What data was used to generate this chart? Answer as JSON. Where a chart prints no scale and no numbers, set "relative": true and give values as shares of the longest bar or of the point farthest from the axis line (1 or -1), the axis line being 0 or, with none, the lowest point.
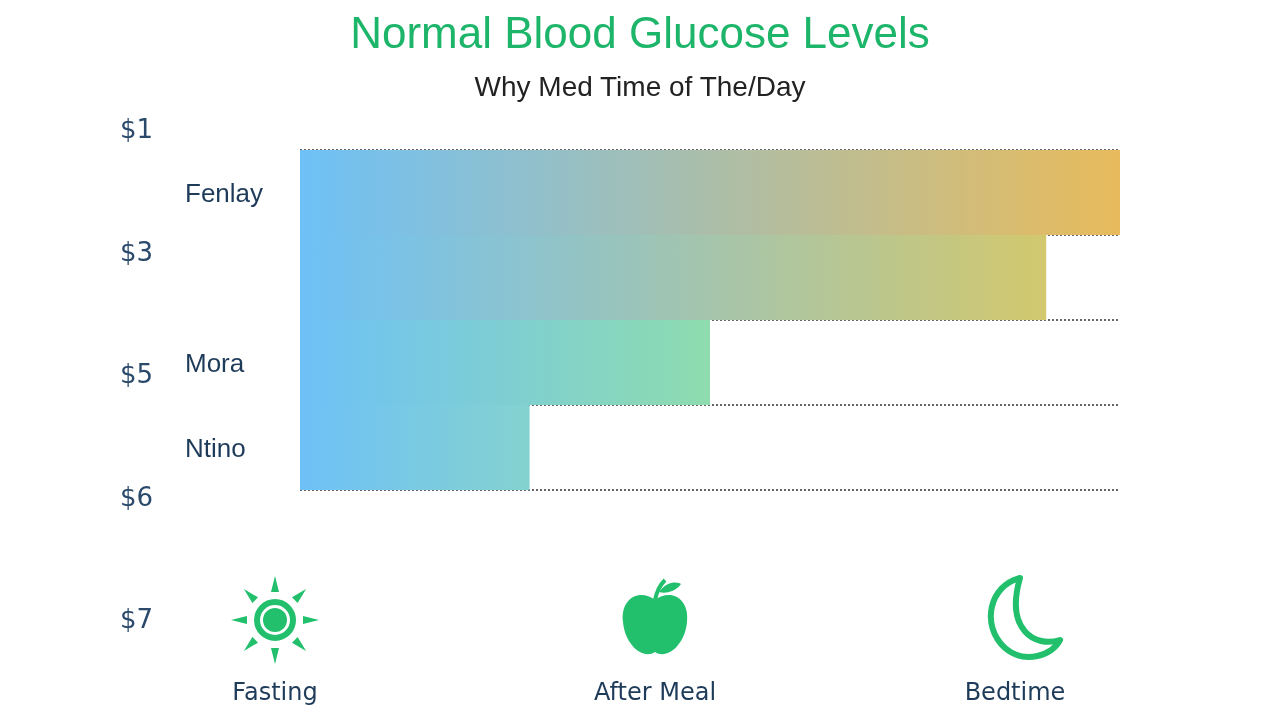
{
  "chart_data": {
    "type": "bar",
    "orientation": "horizontal",
    "relative": true,
    "title": "Normal Blood Glucose Levels",
    "subtitle": "Why Med Time of The/Day",
    "categories": [
      "Fenlay",
      null,
      "Mora",
      "Ntino"
    ],
    "values": [
      1,
      0.91,
      0.5,
      0.28
    ],
    "color": "#6ec1f7",
    "colors": [
      "#e8bb5c",
      "#d2c86e",
      "#8edcae",
      "#84d2cf"
    ],
    "grid": true,
    "annotations": [
      "$1",
      "$3",
      "$5",
      "$6",
      "$7",
      "Fasting",
      "After Meal",
      "Bedtime"
    ]
  }
}
